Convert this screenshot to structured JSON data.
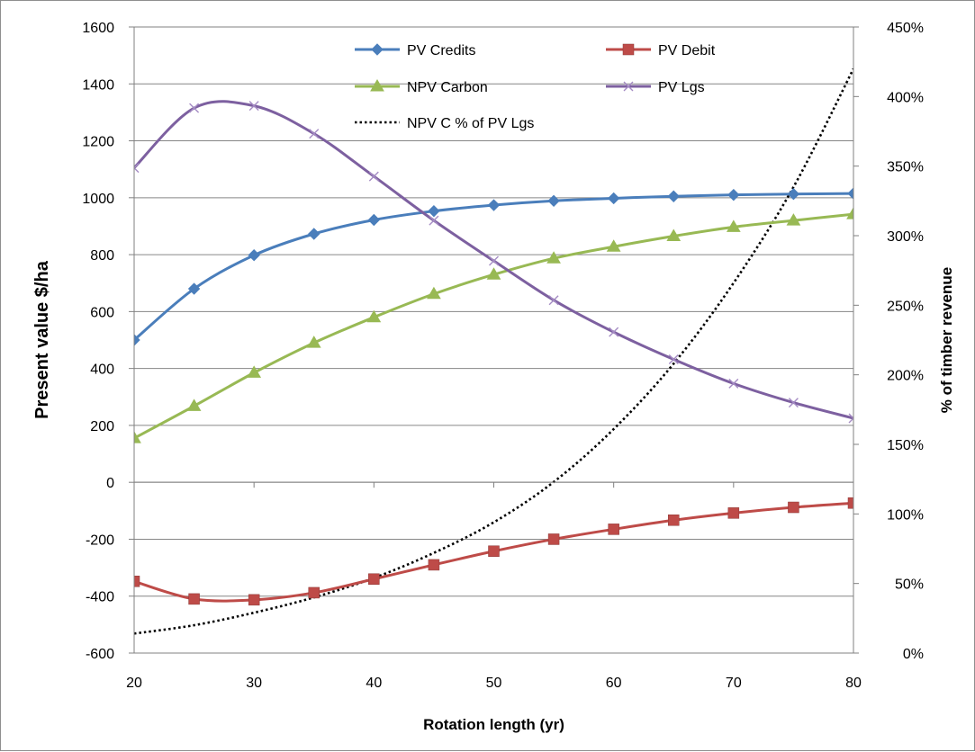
{
  "chart_data": {
    "type": "line",
    "title": "",
    "xlabel": "Rotation length (yr)",
    "ylabel": "Present value $/ha",
    "y2label": "% of timber revenue",
    "x": [
      20,
      25,
      30,
      35,
      40,
      45,
      50,
      55,
      60,
      65,
      70,
      75,
      80
    ],
    "xlim": [
      20,
      80
    ],
    "xticks": [
      "20",
      "30",
      "40",
      "50",
      "60",
      "70",
      "80"
    ],
    "ylim": [
      -600,
      1600
    ],
    "yticks": [
      "-600",
      "-400",
      "-200",
      "0",
      "200",
      "400",
      "600",
      "800",
      "1000",
      "1200",
      "1400",
      "1600"
    ],
    "y2lim": [
      0,
      450
    ],
    "y2ticks": [
      "0%",
      "50%",
      "100%",
      "150%",
      "200%",
      "250%",
      "300%",
      "350%",
      "400%",
      "450%"
    ],
    "grid": "horizontal major gridlines",
    "legend": "top-center inside plot",
    "series": [
      {
        "name": "PV Credits",
        "axis": "left",
        "marker": "diamond",
        "color": "#4a7ebb",
        "values": [
          500,
          680,
          798,
          873,
          922,
          953,
          974,
          989,
          998,
          1005,
          1010,
          1013,
          1015
        ]
      },
      {
        "name": "PV Debit",
        "axis": "left",
        "marker": "square",
        "color": "#be4b48",
        "values": [
          -348,
          -410,
          -413,
          -388,
          -340,
          -290,
          -242,
          -200,
          -165,
          -133,
          -108,
          -88,
          -73
        ]
      },
      {
        "name": "NPV Carbon",
        "axis": "left",
        "marker": "triangle",
        "color": "#98b954",
        "values": [
          155,
          268,
          385,
          490,
          580,
          662,
          730,
          787,
          828,
          865,
          897,
          920,
          942
        ]
      },
      {
        "name": "PV Lgs",
        "axis": "left",
        "marker": "x",
        "color": "#7d60a0",
        "values": [
          1105,
          1315,
          1323,
          1225,
          1075,
          920,
          778,
          640,
          528,
          432,
          347,
          280,
          225
        ]
      },
      {
        "name": "NPV C % of PV Lgs",
        "axis": "right",
        "marker": "none",
        "color": "#000000",
        "dash": "dotted",
        "values": [
          14,
          20,
          29,
          40,
          54,
          72,
          94,
          123,
          161,
          208,
          266,
          335,
          420
        ]
      }
    ]
  }
}
